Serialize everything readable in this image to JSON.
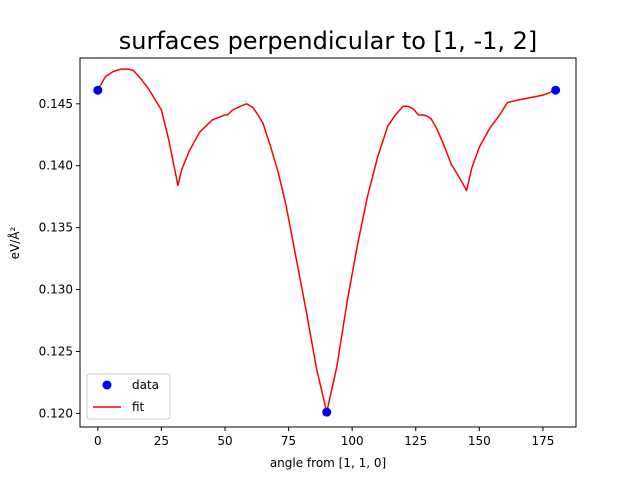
{
  "chart_data": {
    "type": "line",
    "title": "surfaces perpendicular to [1, -1, 2]",
    "xlabel": "angle from [1, 1, 0]",
    "ylabel": "eV/Å²",
    "xlim": [
      -7,
      188
    ],
    "ylim": [
      0.1189,
      0.1487
    ],
    "xticks": [
      0,
      25,
      50,
      75,
      100,
      125,
      150,
      175
    ],
    "yticks": [
      0.12,
      0.125,
      0.13,
      0.135,
      0.14,
      0.145
    ],
    "ytick_labels": [
      "0.120",
      "0.125",
      "0.130",
      "0.135",
      "0.140",
      "0.145"
    ],
    "grid": false,
    "legend_position": "lower-left",
    "series": [
      {
        "name": "data",
        "type": "scatter",
        "color": "#0000ff",
        "x": [
          0,
          90,
          180
        ],
        "y": [
          0.1461,
          0.1201,
          0.1461
        ]
      },
      {
        "name": "fit",
        "type": "line",
        "color": "#ff0000",
        "x": [
          0,
          3,
          6,
          9,
          12,
          14,
          17,
          20,
          25,
          28,
          31.5,
          33,
          36,
          40,
          45,
          50,
          51,
          53,
          56,
          58.5,
          61,
          63,
          65,
          68,
          71,
          74,
          78,
          82,
          86,
          90,
          94,
          98,
          102,
          106,
          110,
          114,
          117,
          120,
          122,
          124,
          126,
          128,
          129.5,
          131,
          133,
          136,
          139,
          142,
          145,
          147,
          150,
          154,
          158,
          161,
          165,
          170,
          175,
          180
        ],
        "y": [
          0.1461,
          0.1472,
          0.1476,
          0.1478,
          0.1478,
          0.1477,
          0.147,
          0.1462,
          0.1445,
          0.142,
          0.1384,
          0.1397,
          0.1412,
          0.1427,
          0.1437,
          0.1441,
          0.1441,
          0.1445,
          0.1448,
          0.145,
          0.1447,
          0.1441,
          0.1434,
          0.1415,
          0.1394,
          0.1368,
          0.1325,
          0.1282,
          0.1236,
          0.1201,
          0.1238,
          0.129,
          0.1335,
          0.1375,
          0.1407,
          0.1432,
          0.1441,
          0.1448,
          0.1448,
          0.1446,
          0.1441,
          0.1441,
          0.144,
          0.1438,
          0.1431,
          0.1417,
          0.1401,
          0.1391,
          0.138,
          0.1398,
          0.1415,
          0.143,
          0.1441,
          0.1451,
          0.1453,
          0.1455,
          0.1457,
          0.1461
        ]
      }
    ]
  }
}
